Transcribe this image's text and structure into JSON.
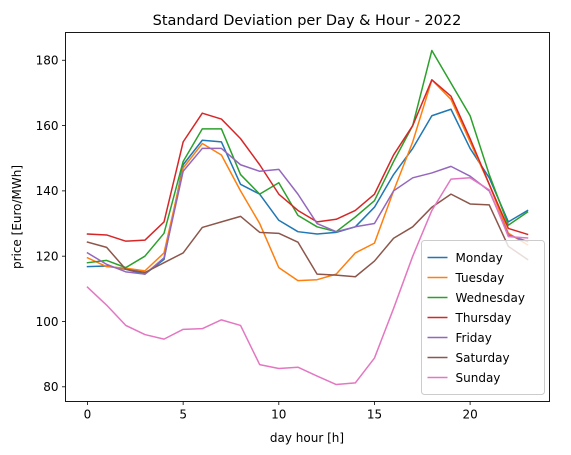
{
  "chart_data": {
    "type": "line",
    "title": "Standard Deviation per Day & Hour - 2022",
    "xlabel": "day hour [h]",
    "ylabel": "price [Euro/MWh]",
    "xlim": [
      -1.15,
      24.15
    ],
    "ylim": [
      75.5,
      188.5
    ],
    "xticks": [
      0,
      5,
      10,
      15,
      20
    ],
    "yticks": [
      80,
      100,
      120,
      140,
      160,
      180
    ],
    "grid": false,
    "legend_position": "lower-right",
    "x": [
      0,
      1,
      2,
      3,
      4,
      5,
      6,
      7,
      8,
      9,
      10,
      11,
      12,
      13,
      14,
      15,
      16,
      17,
      18,
      19,
      20,
      21,
      22,
      23
    ],
    "series": [
      {
        "name": "Monday",
        "color": "#1f77b4",
        "values": [
          116.8,
          117,
          116,
          114.5,
          119,
          148,
          155.5,
          155,
          142,
          139,
          131,
          127.5,
          126.8,
          127.3,
          129,
          135,
          145,
          153,
          163,
          165,
          153,
          144,
          130.5,
          134
        ]
      },
      {
        "name": "Tuesday",
        "color": "#ff7f0e",
        "values": [
          119.5,
          116.8,
          116.3,
          115.5,
          121,
          147,
          154.5,
          151,
          140,
          130,
          116.5,
          112.5,
          112.8,
          114.5,
          121,
          124,
          140,
          155,
          174,
          168,
          155,
          142,
          127,
          123.5
        ]
      },
      {
        "name": "Wednesday",
        "color": "#2ca02c",
        "values": [
          118,
          118.7,
          116.5,
          120,
          127,
          149,
          159,
          159,
          145,
          139,
          142.5,
          132.5,
          129,
          127.5,
          132,
          137,
          149,
          160,
          183,
          173,
          163,
          145,
          129.5,
          133.5
        ]
      },
      {
        "name": "Thursday",
        "color": "#d62728",
        "values": [
          126.8,
          126.5,
          124.6,
          124.9,
          130.5,
          155,
          163.8,
          162,
          156,
          148,
          139,
          134,
          130.5,
          131.3,
          134,
          139,
          151,
          160,
          174,
          169,
          156,
          142,
          128.5,
          126.7
        ]
      },
      {
        "name": "Friday",
        "color": "#9467bd",
        "values": [
          121,
          117.5,
          115.2,
          114.5,
          119.5,
          146,
          153,
          153,
          148,
          146,
          146.6,
          139,
          130,
          127.5,
          129,
          130,
          140,
          144,
          145.5,
          147.5,
          144.5,
          140,
          126.5,
          124.5
        ]
      },
      {
        "name": "Saturday",
        "color": "#8c564b",
        "values": [
          124.3,
          122.7,
          116,
          115,
          118,
          121,
          128.8,
          130.5,
          132.2,
          127.3,
          127,
          124.3,
          114.5,
          114.2,
          113.7,
          118.5,
          125.5,
          129,
          135,
          139,
          136,
          135.7,
          123,
          119
        ]
      },
      {
        "name": "Sunday",
        "color": "#e377c2",
        "values": [
          110.5,
          105,
          98.8,
          96,
          94.6,
          97.6,
          97.8,
          100.5,
          98.8,
          86.8,
          85.6,
          86,
          83.3,
          80.7,
          81.2,
          88.8,
          104,
          120,
          134,
          143.6,
          144,
          140.3,
          126,
          125.6
        ]
      }
    ]
  }
}
